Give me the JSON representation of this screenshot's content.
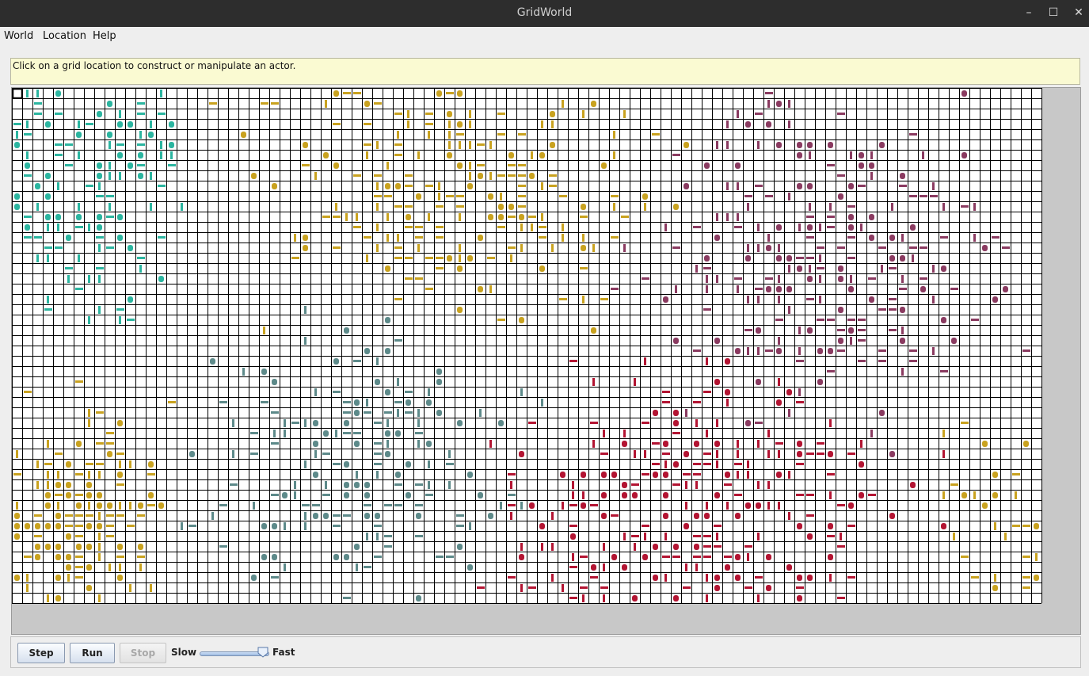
{
  "window": {
    "title": "GridWorld"
  },
  "menu": {
    "world": "World",
    "location": "Location",
    "help": "Help"
  },
  "message": "Click on a grid location to construct or manipulate an actor.",
  "controls": {
    "step_label": "Step",
    "run_label": "Run",
    "stop_label": "Stop",
    "slow_label": "Slow",
    "fast_label": "Fast",
    "speed_fraction": 0.95
  },
  "grid": {
    "rows": 50,
    "cols": 100
  },
  "colors": {
    "teal": "#2bb5a0",
    "gold": "#c9a21f",
    "slate": "#5d8a8a",
    "red": "#b31432",
    "plum": "#8a3a60",
    "pink": "#e07a8a"
  }
}
